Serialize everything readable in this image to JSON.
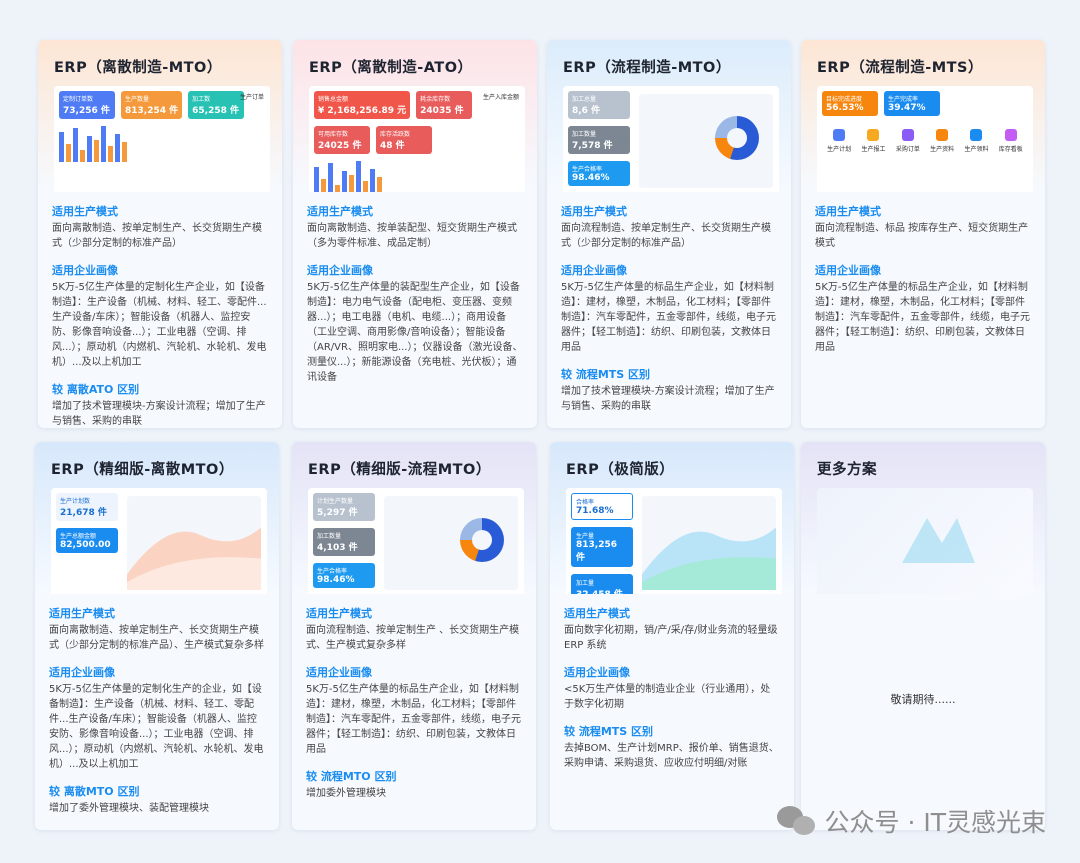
{
  "labels": {
    "mode": "适用生产模式",
    "profile": "适用企业画像"
  },
  "cards": [
    {
      "title": "ERP（离散制造-MTO）",
      "head_bg": "#fde6d4",
      "mode": "面向离散制造、按单定制生产、长交货期生产模式（少部分定制的标准产品）",
      "profile": "5K万-5亿生产体量的定制化生产企业，如【设备制造】：生产设备（机械、材料、轻工、零配件...生产设备/车床）；智能设备（机器人、监控安防、影像音响设备...）；工业电器（空调、排风...）；原动机（内燃机、汽轮机、水轮机、发电机）...及以上机加工",
      "diff_title": "较 离散ATO 区别",
      "diff": "增加了技术管理模块-方案设计流程；增加了生产与销售、采购的串联",
      "thumb": {
        "kind": "stats-bars",
        "stats": [
          {
            "label": "定制订单数",
            "value": "73,256 件",
            "color": "#4f7cf5"
          },
          {
            "label": "生产数量",
            "value": "813,254 件",
            "color": "#f59a3c"
          },
          {
            "label": "加工数",
            "value": "65,258 件",
            "color": "#27c2b4"
          }
        ],
        "side_title": "生产订单"
      }
    },
    {
      "title": "ERP（离散制造-ATO）",
      "head_bg": "#fde3e6",
      "mode": "面向离散制造、按单装配型、短交货期生产模式（多为零件标准、成品定制）",
      "profile": "5K万-5亿生产体量的装配型生产企业，如【设备制造】：电力电气设备（配电柜、变压器、变频器...）；电工电器（电机、电缆...）；商用设备（工业空调、商用影像/音响设备）；智能设备（AR/VR、照明家电...）；仪器设备（激光设备、测量仪...）；新能源设备（充电桩、光伏板）；通讯设备",
      "diff_title": "",
      "diff": "",
      "thumb": {
        "kind": "stats-bars",
        "stats": [
          {
            "label": "销售总金额",
            "value": "¥ 2,168,256.89 元",
            "color": "#f0564a"
          },
          {
            "label": "耗余库存数",
            "value": "24035 件",
            "color": "#e85c5c"
          },
          {
            "label": "可用库存数",
            "value": "24025 件",
            "color": "#e85c5c"
          },
          {
            "label": "库存活跃数",
            "value": "48 件",
            "color": "#e85c5c"
          }
        ],
        "side_title": "生产入库金额"
      }
    },
    {
      "title": "ERP（流程制造-MTO）",
      "head_bg": "#dcecfb",
      "mode": "面向流程制造、按单定制生产、长交货期生产模式（少部分定制的标准产品）",
      "profile": "5K万-5亿生产体量的标品生产企业，如【材料制造】：建材，橡塑，木制品，化工材料；【零部件制造】：汽车零配件，五金零部件，线缆，电子元器件；【轻工制造】：纺织、印刷包装，文教体日用品",
      "diff_title": "较 流程MTS 区别",
      "diff": "增加了技术管理模块-方案设计流程；增加了生产与销售、采购的串联",
      "thumb": {
        "kind": "map",
        "stats": [
          {
            "label": "加工总量",
            "value": "8,6 件",
            "color": "#b8c2cf"
          },
          {
            "label": "加工数量",
            "value": "7,578 件",
            "color": "#7d8794"
          },
          {
            "label": "生产合格率",
            "value": "98.46%",
            "color": "#1e9bf0"
          }
        ]
      }
    },
    {
      "title": "ERP（流程制造-MTS）",
      "head_bg": "#fde6d4",
      "mode": "面向流程制造、标品 按库存生产、短交货期生产模式",
      "profile": "5K万-5亿生产体量的标品生产企业，如【材料制造】：建材，橡塑，木制品，化工材料；【零部件制造】：汽车零配件，五金零部件，线缆，电子元器件；【轻工制造】：纺织、印刷包装，文教体日用品",
      "diff_title": "",
      "diff": "",
      "thumb": {
        "kind": "icons",
        "stats": [
          {
            "label": "目标完成进度",
            "value": "56.53%",
            "color": "#f7860f"
          },
          {
            "label": "生产完成率",
            "value": "39.47%",
            "color": "#1a8cf0"
          }
        ],
        "icons": [
          "生产计划",
          "生产报工",
          "采购订单",
          "生产资料",
          "生产领料",
          "库存看板"
        ]
      }
    },
    {
      "title": "ERP（精细版-离散MTO）",
      "head_bg": "#d7e8fb",
      "mode": "面向离散制造、按单定制生产、长交货期生产模式（少部分定制的标准产品）、生产模式复杂多样",
      "profile": "5K万-5亿生产体量的定制化生产的企业，如【设备制造】：生产设备（机械、材料、轻工、零配件...生产设备/车床）；智能设备（机器人、监控安防、影像音响设备...）；工业电器（空调、排风...）；原动机（内燃机、汽轮机、水轮机、发电机）...及以上机加工",
      "diff_title": "较 离散MTO 区别",
      "diff": "增加了委外管理模块、装配管理模块",
      "thumb": {
        "kind": "area",
        "stats": [
          {
            "label": "生产计划数",
            "value": "21,678 件",
            "color": "#eef4fd",
            "dark": true
          },
          {
            "label": "生产总额金额",
            "value": "82,500.00",
            "color": "#1a8cf0"
          }
        ]
      }
    },
    {
      "title": "ERP（精细版-流程MTO）",
      "head_bg": "#e4e3f6",
      "mode": "面向流程制造、按单定制生产 、长交货期生产模式、生产模式复杂多样",
      "profile": "5K万-5亿生产体量的标品生产企业，如【材料制造】：建材，橡塑，木制品，化工材料；【零部件制造】：汽车零配件，五金零部件，线缆，电子元器件；【轻工制造】：纺织、印刷包装，文教体日用品",
      "diff_title": "较 流程MTO 区别",
      "diff": "增加委外管理模块",
      "thumb": {
        "kind": "donut-bars",
        "stats": [
          {
            "label": "计划生产数量",
            "value": "5,297 件",
            "color": "#b8c2cf"
          },
          {
            "label": "加工数量",
            "value": "4,103 件",
            "color": "#7d8794"
          },
          {
            "label": "生产合格率",
            "value": "98.46%",
            "color": "#1e9bf0"
          }
        ]
      }
    },
    {
      "title": "ERP（极简版）",
      "head_bg": "#d7e8fb",
      "mode": "面向数字化初期，销/产/采/存/财业务流的轻量级 ERP 系统",
      "profile": "<5K万生产体量的制造业企业（行业通用），处于数字化初期",
      "diff_title": "较 流程MTS 区别",
      "diff": "去掉BOM、生产计划MRP、报价单、销售退货、采购申请、采购退货、应收应付明细/对账",
      "thumb": {
        "kind": "lines",
        "stats": [
          {
            "label": "合格率",
            "value": "71.68%",
            "color": "#ffffff",
            "dark": true
          },
          {
            "label": "生产量",
            "value": "813,256 件",
            "color": "#1a8cf0"
          },
          {
            "label": "加工量",
            "value": "32,458 件",
            "color": "#1a8cf0"
          }
        ]
      }
    },
    {
      "title": "更多方案",
      "head_bg": "#e4e3f6",
      "more": true,
      "wait": "敬请期待......"
    }
  ],
  "watermark": "公众号 · IT灵感光束"
}
